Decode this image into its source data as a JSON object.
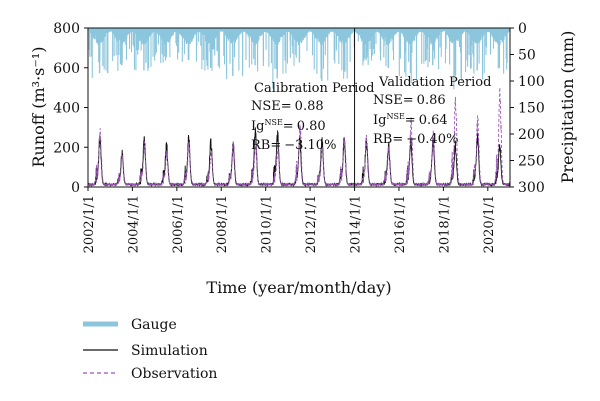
{
  "chart_data": {
    "type": "line",
    "title": "",
    "xlabel": "Time (year/month/day)",
    "ylabel_left": "Runoff (m³·s⁻¹)",
    "ylabel_right": "Precipitation (mm)",
    "x_range": [
      "2002-01-01",
      "2020-12-31"
    ],
    "ylim_left": [
      0,
      800
    ],
    "ylim_right": [
      300,
      0
    ],
    "x_ticks": [
      "2002/1/1",
      "2004/1/1",
      "2006/1/1",
      "2008/1/1",
      "2010/1/1",
      "2012/1/1",
      "2014/1/1",
      "2016/1/1",
      "2018/1/1",
      "2020/1/1"
    ],
    "y_ticks_left": [
      "0",
      "200",
      "400",
      "600",
      "800"
    ],
    "y_ticks_right": [
      "0",
      "50",
      "100",
      "150",
      "200",
      "250",
      "300"
    ],
    "grid": false,
    "legend_position": "below-left",
    "legend": [
      "Gauge",
      "Simulation",
      "Observation"
    ],
    "series": [
      {
        "name": "Gauge",
        "style": "bars-from-top",
        "color": "#8cc6dd",
        "axis": "right",
        "note_years": [
          2002,
          2003,
          2004,
          2005,
          2006,
          2007,
          2008,
          2009,
          2010,
          2011,
          2012,
          2013,
          2014,
          2015,
          2016,
          2017,
          2018,
          2019,
          2020
        ],
        "annual_peak_precip_mm": [
          85,
          70,
          80,
          55,
          60,
          75,
          90,
          70,
          95,
          65,
          100,
          80,
          60,
          75,
          85,
          70,
          90,
          80,
          75
        ]
      },
      {
        "name": "Simulation",
        "style": "solid",
        "color": "#111111",
        "axis": "left",
        "annual_peak_runoff": [
          260,
          175,
          255,
          225,
          255,
          245,
          215,
          300,
          285,
          260,
          245,
          250,
          245,
          215,
          245,
          245,
          220,
          270,
          215
        ]
      },
      {
        "name": "Observation",
        "style": "dashed",
        "color": "#9a55b5",
        "axis": "left",
        "annual_peak_runoff": [
          285,
          160,
          225,
          180,
          230,
          175,
          230,
          235,
          200,
          315,
          200,
          250,
          255,
          205,
          350,
          285,
          455,
          360,
          500
        ]
      }
    ],
    "annotations": [
      {
        "text": "Calibration Period",
        "period": [
          "2002-01-01",
          "2014-01-01"
        ]
      },
      {
        "text": "Validation Period",
        "period": [
          "2014-01-01",
          "2020-12-31"
        ]
      }
    ],
    "divider_x": "2014-01-01",
    "metrics": {
      "calibration": {
        "nse_label": "NSE=",
        "nse": "0.88",
        "ig_label": "Ig",
        "ig_sup": "NSE",
        "ig_eq": "=",
        "ig": "0.80",
        "rb_label": "RB=",
        "rb": "−3.10%"
      },
      "validation": {
        "nse_label": "NSE=",
        "nse": "0.86",
        "ig_label": "Ig",
        "ig_sup": "NSE",
        "ig_eq": "=",
        "ig": "0.64",
        "rb_label": "RB=",
        "rb": "−0.40%"
      }
    }
  }
}
